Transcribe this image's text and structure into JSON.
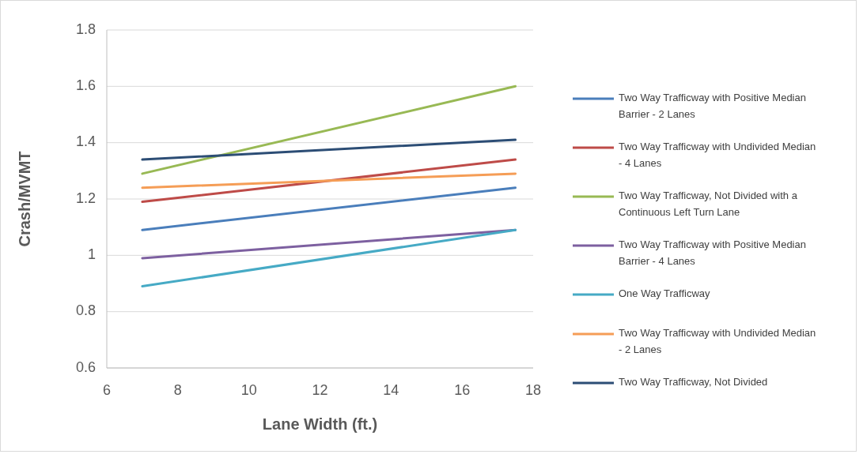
{
  "chart_data": {
    "type": "line",
    "xlabel": "Lane Width (ft.)",
    "ylabel": "Crash/MVMT",
    "x": [
      7,
      17.5
    ],
    "xlim": [
      6,
      18
    ],
    "xticks": [
      6,
      8,
      10,
      12,
      14,
      16,
      18
    ],
    "ylim": [
      0.6,
      1.8
    ],
    "yticks": [
      0.6,
      0.8,
      1,
      1.2,
      1.4,
      1.6,
      1.8
    ],
    "grid": "y",
    "legend": "right",
    "marker": "none",
    "line_style": "solid",
    "series": [
      {
        "name": "Two Way Trafficway with Positive Median Barrier - 2 Lanes",
        "color": "#4a7ebb",
        "values": [
          1.09,
          1.24
        ]
      },
      {
        "name": "Two Way Trafficway with Undivided Median - 4 Lanes",
        "color": "#be4b48",
        "values": [
          1.19,
          1.34
        ]
      },
      {
        "name": "Two Way Trafficway, Not Divided with a Continuous Left Turn Lane",
        "color": "#98b954",
        "values": [
          1.29,
          1.6
        ]
      },
      {
        "name": "Two Way Trafficway with Positive Median Barrier - 4 Lanes",
        "color": "#7d60a0",
        "values": [
          0.99,
          1.09
        ]
      },
      {
        "name": "One Way Trafficway",
        "color": "#46aac5",
        "values": [
          0.89,
          1.09
        ]
      },
      {
        "name": "Two Way Trafficway with Undivided Median - 2 Lanes",
        "color": "#f59d56",
        "values": [
          1.24,
          1.29
        ]
      },
      {
        "name": "Two Way Trafficway, Not Divided",
        "color": "#2c4d75",
        "values": [
          1.34,
          1.41
        ]
      }
    ]
  }
}
